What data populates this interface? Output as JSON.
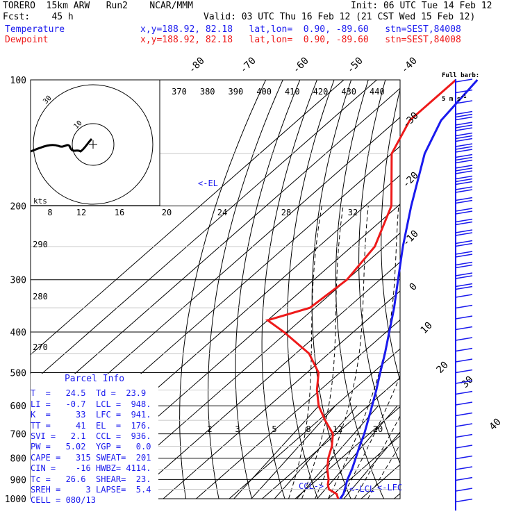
{
  "header": {
    "model": "TORERO  15km ARW   Run2    NCAR/MMM",
    "init": "Init: 06 UTC Tue 14 Feb 12",
    "fcst": "Fcst:    45 h",
    "valid": "Valid: 03 UTC Thu 16 Feb 12 (21 CST Wed 15 Feb 12)",
    "temp_label": "Temperature",
    "dew_label": "Dewpoint",
    "temp_loc": "x,y=188.92, 82.18   lat,lon=  0.90, -89.60   stn=SEST,84008",
    "dew_loc": "x,y=188.92, 82.18   lat,lon=  0.90, -89.60   stn=SEST,84008"
  },
  "wind_key": {
    "line1": "Full barb:",
    "line2": "5 m s",
    "unit_exp": "-1"
  },
  "hodograph": {
    "unit": "kts",
    "ring_labels": [
      "10",
      "30"
    ]
  },
  "annotations": {
    "el": "<-EL",
    "ccl": "CCL->",
    "lcl": "<-LCL",
    "lfc": "<-LFC"
  },
  "parcel_info": {
    "title": "Parcel Info",
    "rows": [
      [
        "T  =   24.5",
        "Td =  23.9"
      ],
      [
        "LI =   -0.7",
        "LCL =  948."
      ],
      [
        "K  =     33",
        "LFC =  941."
      ],
      [
        "TT =     41",
        "EL  =  176."
      ],
      [
        "SVI =   2.1",
        "CCL =  936."
      ],
      [
        "PW =   5.02",
        "YGP =   0.0"
      ],
      [
        "CAPE =   315",
        "SWEAT=  201"
      ],
      [
        "CIN =    -16",
        "HWBZ= 4114."
      ],
      [
        "Tc =   26.6",
        "SHEAR=  23."
      ],
      [
        "SREH =     3",
        "LAPSE=  5.4"
      ],
      [
        "CELL = 080/13",
        ""
      ]
    ]
  },
  "chart_data": {
    "type": "line",
    "title": "",
    "xlabel": "",
    "ylabel": "",
    "y_axis": "pressure (hPa), log scale",
    "pressure_ticks": [
      100,
      200,
      300,
      400,
      500,
      600,
      700,
      800,
      900,
      1000
    ],
    "isotherm_labels": [
      -80,
      -70,
      -60,
      -50,
      -40,
      -30,
      -20,
      -10,
      0,
      10,
      20,
      30,
      40
    ],
    "theta_labels": [
      "370",
      "380",
      "390",
      "400",
      "410",
      "420",
      "430",
      "440"
    ],
    "theta_left_labels": [
      "290",
      "280",
      "270"
    ],
    "mixing_ratio_upper": [
      "8",
      "12",
      "16",
      "20",
      "24",
      "28",
      "32"
    ],
    "mixing_ratio_lower": [
      "2",
      "3",
      "5",
      "8",
      "12",
      "20"
    ],
    "series": [
      {
        "name": "Temperature",
        "color": "#1a1aee",
        "p": [
          1000,
          975,
          950,
          925,
          900,
          850,
          800,
          750,
          700,
          650,
          600,
          550,
          500,
          450,
          400,
          350,
          300,
          250,
          200,
          150,
          125,
          100
        ],
        "t": [
          23.6,
          23.0,
          21.8,
          20.5,
          19.2,
          17.0,
          14.3,
          11.4,
          8.5,
          5.0,
          1.2,
          -3.0,
          -7.8,
          -13.0,
          -19.1,
          -26.0,
          -34.5,
          -44.5,
          -56.0,
          -70.0,
          -76.5,
          -79.5
        ]
      },
      {
        "name": "Dewpoint",
        "color": "#ee1a1a",
        "p": [
          1000,
          975,
          950,
          925,
          900,
          850,
          800,
          750,
          700,
          650,
          600,
          550,
          500,
          450,
          400,
          375,
          350,
          300,
          250,
          200,
          150,
          125,
          100
        ],
        "t": [
          23.0,
          21.0,
          17.0,
          15.0,
          13.5,
          9.5,
          6.0,
          3.0,
          -1.0,
          -8.0,
          -15.0,
          -21.0,
          -26.5,
          -36.0,
          -51.0,
          -60.0,
          -51.5,
          -50.0,
          -53.0,
          -62.0,
          -80.0,
          -86.0,
          -86.0
        ]
      }
    ],
    "winds": [
      {
        "p": 1000,
        "dir": 200,
        "kt": 6
      }
    ]
  },
  "colors": {
    "temperature": "#1a1aee",
    "dewpoint": "#ee1a1a",
    "barb": "#1a1aee",
    "grid": "#000000"
  }
}
